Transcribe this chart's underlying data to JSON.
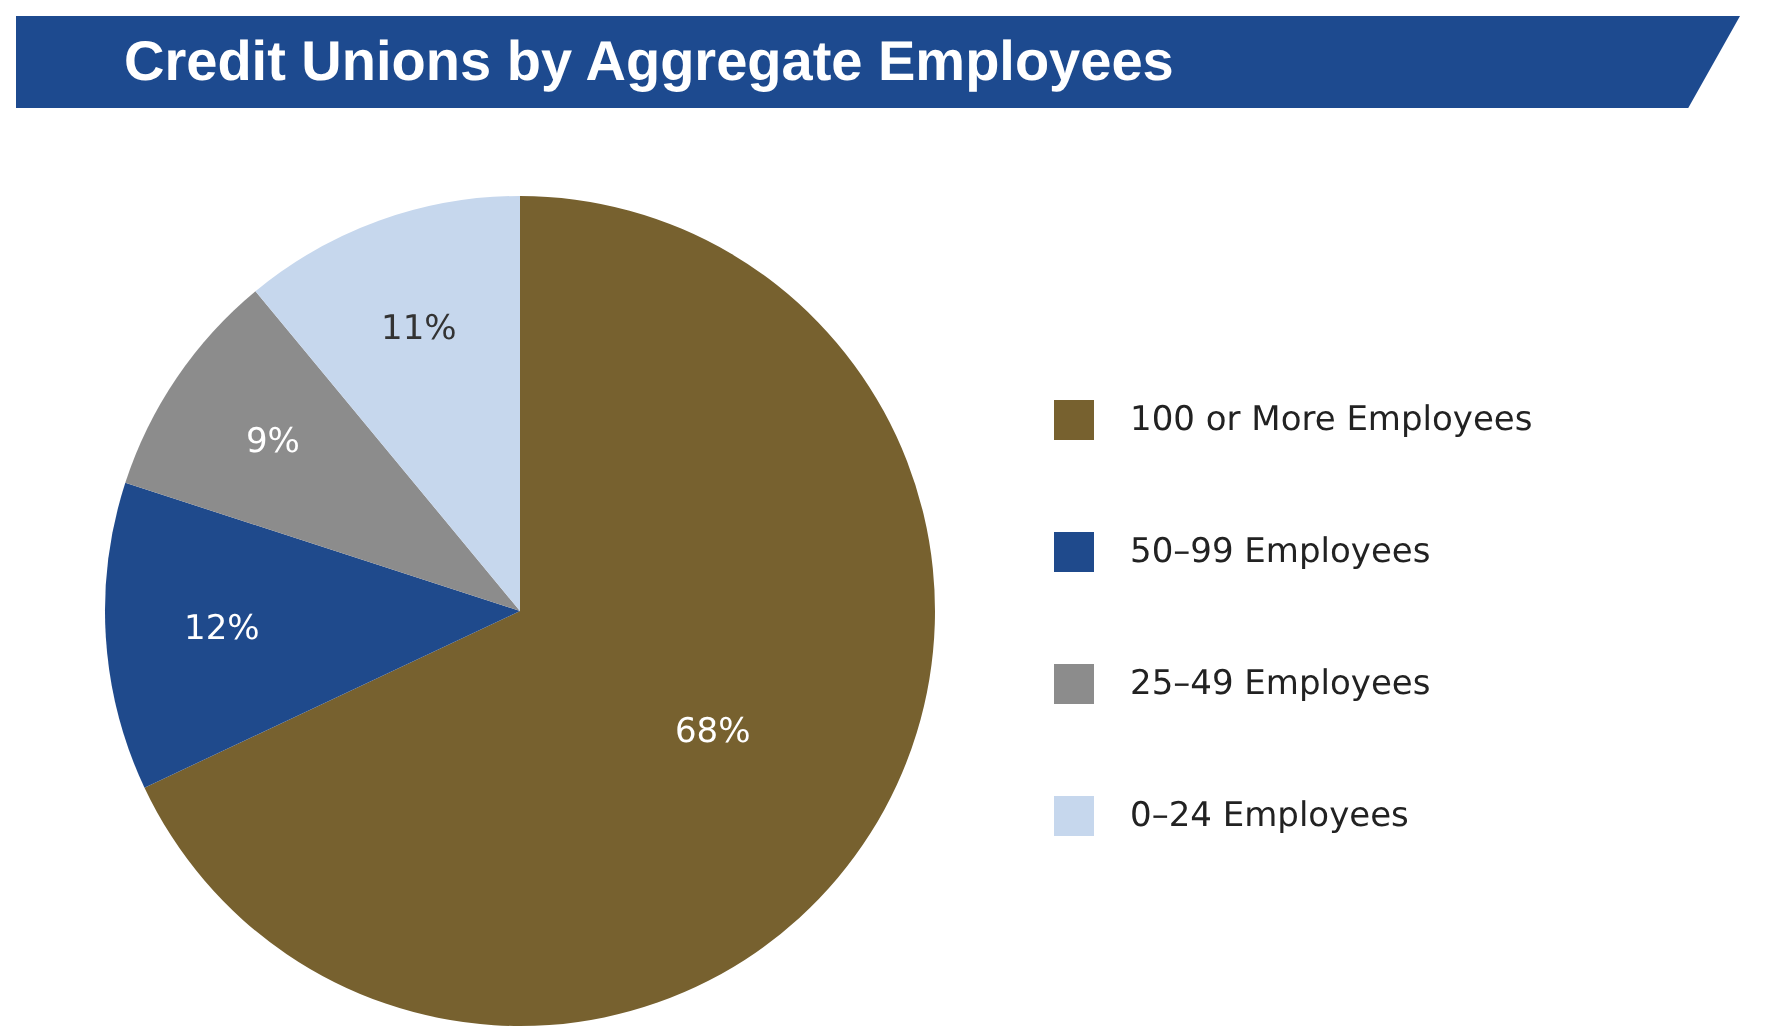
{
  "chart_data": {
    "type": "pie",
    "title": "Credit Unions by Aggregate Employees",
    "categories": [
      "100 or More Employees",
      "50–99 Employees",
      "25–49 Employees",
      "0–24 Employees"
    ],
    "values": [
      68,
      12,
      9,
      11
    ],
    "value_labels": [
      "68%",
      "12%",
      "9%",
      "11%"
    ],
    "colors": [
      "#77612f",
      "#1f4a8c",
      "#8c8c8c",
      "#c6d7ed"
    ],
    "legend": "right"
  }
}
